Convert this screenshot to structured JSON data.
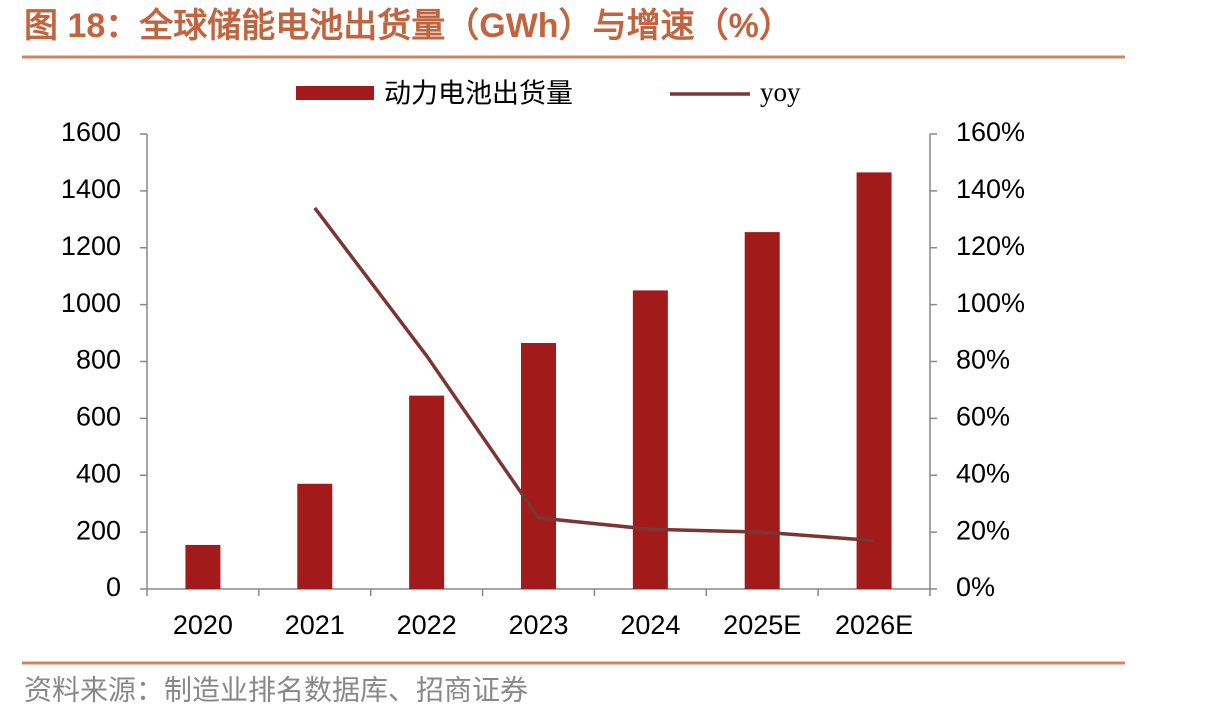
{
  "chart_data": {
    "type": "bar-line",
    "title": "图 18：全球储能电池出货量（GWh）与增速（%）",
    "source": "资料来源：制造业排名数据库、招商证券",
    "categories": [
      "2020",
      "2021",
      "2022",
      "2023",
      "2024",
      "2025E",
      "2026E"
    ],
    "series": [
      {
        "name": "动力电池出货量",
        "type": "bar",
        "color": "#a31a1a",
        "values": [
          155,
          370,
          680,
          865,
          1050,
          1255,
          1465
        ]
      },
      {
        "name": "yoy",
        "type": "line",
        "axis": "y2",
        "color": "#7b3532",
        "values": [
          null,
          134,
          82,
          25,
          21,
          20,
          17
        ]
      }
    ],
    "ylim": [
      0,
      1600
    ],
    "yticks": [
      0,
      200,
      400,
      600,
      800,
      1000,
      1200,
      1400,
      1600
    ],
    "y2lim": [
      0,
      160
    ],
    "y2ticks": [
      {
        "value": 0,
        "label": "0%"
      },
      {
        "value": 20,
        "label": "20%"
      },
      {
        "value": 40,
        "label": "40%"
      },
      {
        "value": 60,
        "label": "60%"
      },
      {
        "value": 80,
        "label": "80%"
      },
      {
        "value": 100,
        "label": "100%"
      },
      {
        "value": 120,
        "label": "120%"
      },
      {
        "value": 140,
        "label": "140%"
      },
      {
        "value": 160,
        "label": "160%"
      }
    ]
  }
}
